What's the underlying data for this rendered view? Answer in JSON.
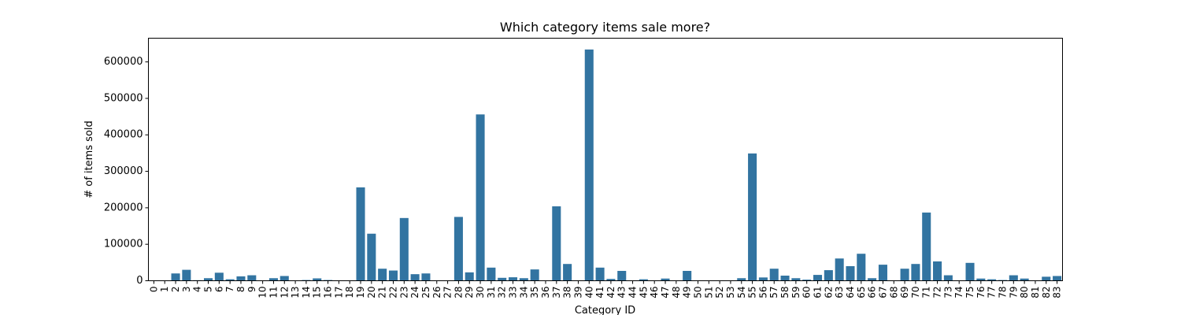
{
  "chart_data": {
    "type": "bar",
    "title": "Which category items sale more?",
    "xlabel": "Category ID",
    "ylabel": "# of items sold",
    "ylim": [
      0,
      665000
    ],
    "yticks": [
      0,
      100000,
      200000,
      300000,
      400000,
      500000,
      600000
    ],
    "grid": false,
    "bar_color": "#3274a1",
    "categories": [
      "0",
      "1",
      "2",
      "3",
      "4",
      "5",
      "6",
      "7",
      "8",
      "9",
      "10",
      "11",
      "12",
      "13",
      "14",
      "15",
      "16",
      "17",
      "18",
      "19",
      "20",
      "21",
      "22",
      "23",
      "24",
      "25",
      "26",
      "27",
      "28",
      "29",
      "30",
      "31",
      "32",
      "33",
      "34",
      "35",
      "36",
      "37",
      "38",
      "39",
      "40",
      "41",
      "42",
      "43",
      "44",
      "45",
      "46",
      "47",
      "48",
      "49",
      "50",
      "51",
      "52",
      "53",
      "54",
      "55",
      "56",
      "57",
      "58",
      "59",
      "60",
      "61",
      "62",
      "63",
      "64",
      "65",
      "66",
      "67",
      "68",
      "69",
      "70",
      "71",
      "72",
      "73",
      "74",
      "75",
      "76",
      "77",
      "78",
      "79",
      "80",
      "81",
      "82",
      "83"
    ],
    "values": [
      0,
      300,
      20000,
      30000,
      1500,
      7000,
      22000,
      4000,
      12000,
      15000,
      300,
      7000,
      13000,
      300,
      2000,
      6500,
      2000,
      500,
      300,
      256000,
      129000,
      33000,
      28000,
      172000,
      18000,
      20000,
      700,
      300,
      175000,
      23000,
      456000,
      36000,
      8000,
      9500,
      7000,
      31000,
      500,
      204000,
      46000,
      300,
      634000,
      36000,
      5000,
      27000,
      500,
      4000,
      800,
      6000,
      900,
      27000,
      800,
      500,
      300,
      400,
      7000,
      349000,
      9000,
      33000,
      14000,
      7000,
      3000,
      16000,
      29000,
      61000,
      40000,
      74000,
      7000,
      44000,
      300,
      33000,
      46000,
      187000,
      53000,
      15000,
      600,
      49000,
      6000,
      4000,
      2000,
      15000,
      6000,
      500,
      11000,
      13000
    ]
  }
}
